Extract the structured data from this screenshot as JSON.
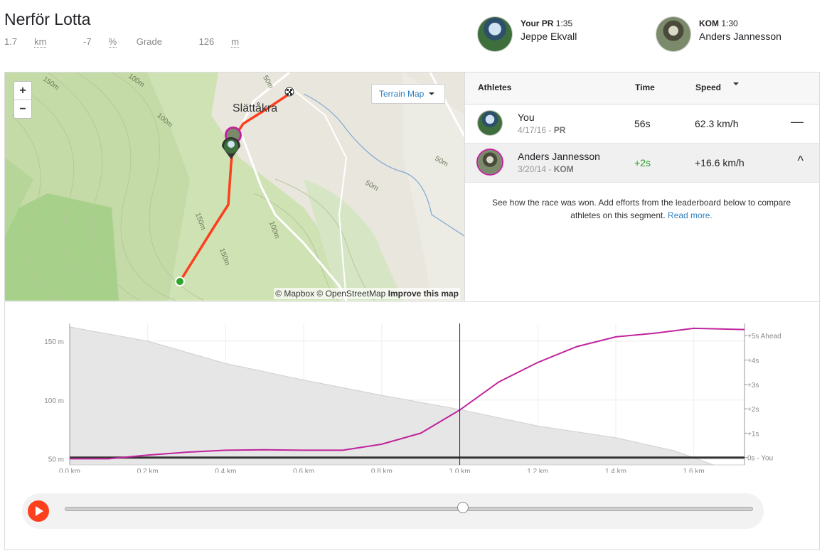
{
  "segment": {
    "title": "Nerför Lotta",
    "distance_value": "1.7",
    "distance_unit": "km",
    "grade_value": "-7",
    "grade_unit": "%",
    "grade_label": "Grade",
    "elev_value": "126",
    "elev_unit": "m"
  },
  "header": {
    "pr_label": "Your PR",
    "pr_time": "1:35",
    "pr_name": "Jeppe Ekvall",
    "kom_label": "KOM",
    "kom_time": "1:30",
    "kom_name": "Anders Jannesson"
  },
  "map": {
    "zoom_in": "+",
    "zoom_out": "−",
    "terrain_label": "Terrain Map",
    "place_name": "Slättåkra",
    "attribution_1": "© Mapbox © OpenStreetMap",
    "attribution_2": "Improve this map",
    "contour_labels": [
      "150m",
      "100m",
      "100m",
      "50m",
      "50m",
      "100m",
      "150m",
      "150m",
      "50m"
    ]
  },
  "table": {
    "col_athletes": "Athletes",
    "col_time": "Time",
    "col_speed": "Speed",
    "rows": [
      {
        "name": "You",
        "date": "4/17/16 - ",
        "tag": "PR",
        "time": "56s",
        "speed": "62.3 km/h",
        "control": "—"
      },
      {
        "name": "Anders Jannesson",
        "date": "3/20/14 - ",
        "tag": "KOM",
        "time": "+2s",
        "speed": "+16.6 km/h",
        "control": "^"
      }
    ],
    "note": "See how the race was won. Add efforts from the leaderboard below to compare athletes on this segment.",
    "read_more": "Read more."
  },
  "colors": {
    "route": "#fc3f1d",
    "compare_line": "#c0249c",
    "start": "#2aa52a",
    "accent_link": "#2d7fbf",
    "elevation_fill": "#e6e6e6"
  },
  "chart_data": {
    "type": "line",
    "x_unit": "km",
    "x_ticks": [
      "0.0 km",
      "0.2 km",
      "0.4 km",
      "0.6 km",
      "0.8 km",
      "1.0 km",
      "1.2 km",
      "1.4 km",
      "1.6 km"
    ],
    "y_left_ticks": [
      "150 m",
      "100 m",
      "50 m"
    ],
    "y_right_ticks": [
      "+5s Ahead",
      "+4s",
      "+3s",
      "+2s",
      "+1s",
      "0s - You"
    ],
    "xlim": [
      0,
      1.73
    ],
    "ylim_elevation": [
      45,
      165
    ],
    "ylim_gap": [
      -0.3,
      5.5
    ],
    "elevation": {
      "x": [
        0,
        0.2,
        0.4,
        0.6,
        0.8,
        1.0,
        1.2,
        1.4,
        1.55,
        1.65,
        1.73
      ],
      "y": [
        162,
        150,
        131,
        117,
        104,
        92,
        78,
        68,
        57,
        45,
        45
      ]
    },
    "series": [
      {
        "name": "Anders Jannesson",
        "x": [
          0,
          0.1,
          0.2,
          0.3,
          0.4,
          0.5,
          0.6,
          0.7,
          0.8,
          0.9,
          1.0,
          1.1,
          1.2,
          1.3,
          1.4,
          1.5,
          1.6,
          1.73
        ],
        "y": [
          -0.05,
          -0.05,
          0.1,
          0.22,
          0.3,
          0.32,
          0.3,
          0.3,
          0.55,
          1.0,
          1.95,
          3.1,
          3.9,
          4.55,
          4.95,
          5.1,
          5.3,
          5.25
        ]
      }
    ],
    "cursor_x": 1.0
  },
  "player": {
    "progress": 0.58
  }
}
